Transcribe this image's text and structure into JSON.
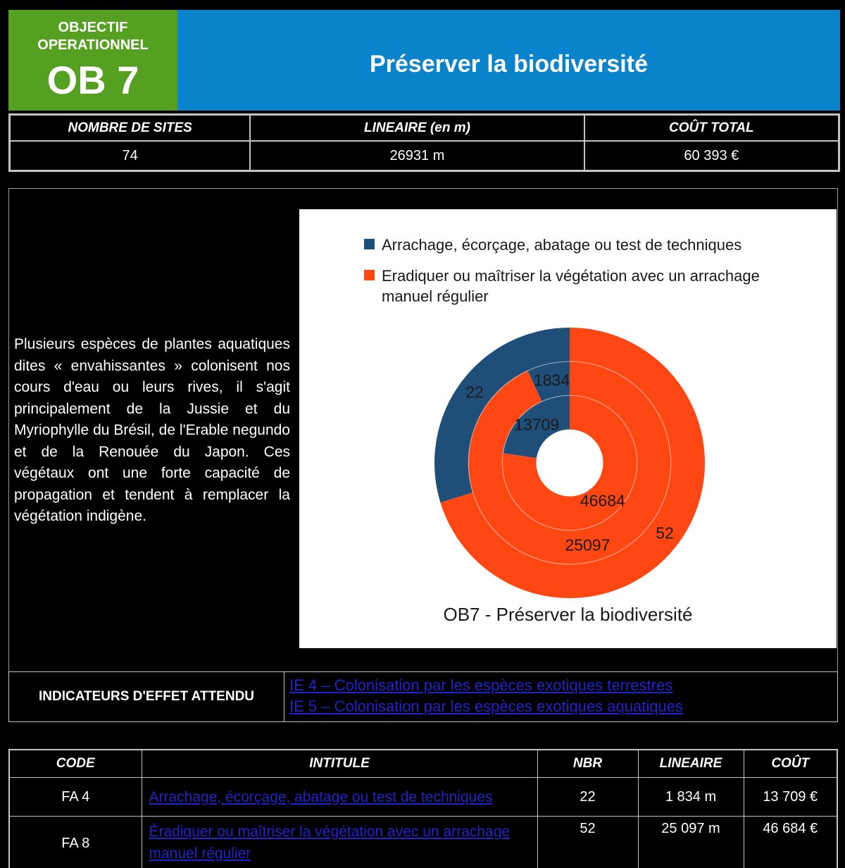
{
  "theme": {
    "page_background": "#000000",
    "header_green": "#55A021",
    "header_blue": "#0883CC",
    "link_color": "#2222CC",
    "border_gray": "#C4C4C4"
  },
  "header": {
    "objective_label_line1": "OBJECTIF",
    "objective_label_line2": "OPERATIONNEL",
    "objective_code": "OB 7",
    "title": "Préserver la biodiversité"
  },
  "stats": {
    "columns": [
      "NOMBRE DE SITES",
      "LINEAIRE (en m)",
      "COÛT TOTAL"
    ],
    "values": [
      "74",
      "26931 m",
      "60 393 €"
    ]
  },
  "description": "Plusieurs espèces de plantes aquatiques dites « envahissantes » colonisent nos cours d'eau ou leurs rives, il s'agit principalement de la Jussie et du Myriophylle du Brésil, de l'Erable negundo et de la Renouée du Japon. Ces végétaux ont une forte capacité de propagation et tendent à remplacer la végétation indigène.",
  "chart_data": {
    "type": "pie",
    "subtype": "multi-ring-donut",
    "title": "OB7 - Préserver la biodiversité",
    "categories": [
      "Arrachage, écorçage, abatage ou test de techniques",
      "Eradiquer ou maîtriser la végétation avec un arrachage manuel régulier"
    ],
    "colors": [
      "#1F4E79",
      "#FF4713"
    ],
    "series": [
      {
        "name": "NBR",
        "ring": "outer",
        "values": [
          22,
          52
        ]
      },
      {
        "name": "LINEAIRE",
        "ring": "middle",
        "values": [
          1834,
          25097
        ]
      },
      {
        "name": "COÛT",
        "ring": "inner",
        "values": [
          13709,
          46684
        ]
      }
    ],
    "layout": {
      "start_angle_deg": 90,
      "direction": "counterclockwise",
      "legend_position": "top",
      "data_labels": "value"
    }
  },
  "indicators": {
    "label": "INDICATEURS D'EFFET ATTENDU",
    "links": [
      "IE 4 – Colonisation par les espèces exotiques terrestres",
      "IE 5 – Colonisation par les espèces exotiques aquatiques"
    ]
  },
  "actions_table": {
    "columns": [
      "CODE",
      "INTITULE",
      "NBR",
      "LINEAIRE",
      "COÛT"
    ],
    "rows": [
      {
        "code": "FA 4",
        "intitule": "Arrachage, écorçage, abatage ou test de techniques",
        "nbr": "22",
        "lineaire": "1 834 m",
        "cout": "13 709 €"
      },
      {
        "code": "FA 8",
        "intitule": "Éradiquer ou maîtriser la végétation avec un arrachage manuel régulier",
        "nbr": "52",
        "lineaire": "25 097 m",
        "cout": "46 684 €"
      }
    ]
  }
}
